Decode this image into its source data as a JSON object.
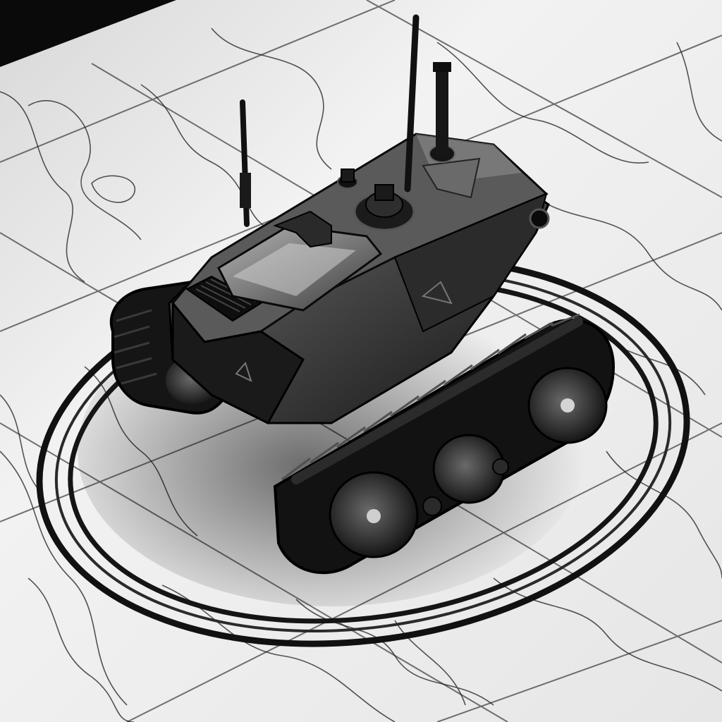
{
  "scene": {
    "subject": "tracked-robot",
    "palette": {
      "background_dark": "#0a0a0a",
      "map_paper": "#e9e9e9",
      "map_line": "#2a2a2a",
      "body_dark": "#1c1c1c",
      "body_mid": "#3a3a3a",
      "body_light": "#9a9a9a",
      "track": "#141414",
      "ring": "#111111"
    }
  }
}
